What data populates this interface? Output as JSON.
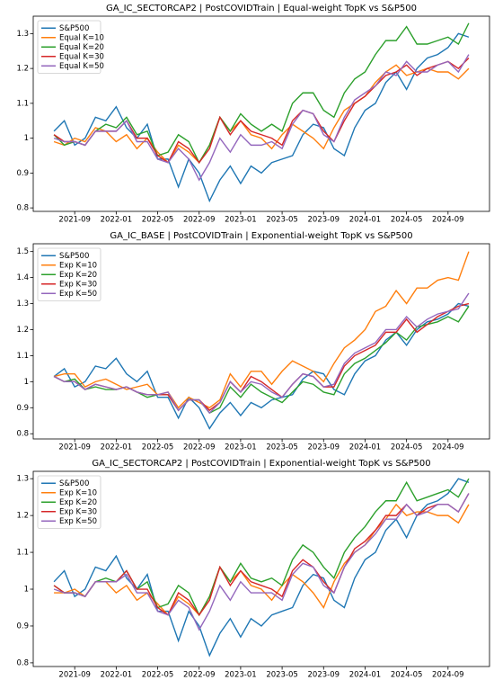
{
  "chart_data": [
    {
      "type": "line",
      "title": "GA_IC_SECTORCAP2 | PostCOVIDTrain | Equal-weight TopK vs S&P500",
      "x": [
        "2021-07",
        "2021-08",
        "2021-09",
        "2021-10",
        "2021-11",
        "2021-12",
        "2022-01",
        "2022-02",
        "2022-03",
        "2022-04",
        "2022-05",
        "2022-06",
        "2022-07",
        "2022-08",
        "2022-09",
        "2022-10",
        "2022-11",
        "2022-12",
        "2023-01",
        "2023-02",
        "2023-03",
        "2023-04",
        "2023-05",
        "2023-06",
        "2023-07",
        "2023-08",
        "2023-09",
        "2023-10",
        "2023-11",
        "2023-12",
        "2024-01",
        "2024-02",
        "2024-03",
        "2024-04",
        "2024-05",
        "2024-06",
        "2024-07",
        "2024-08",
        "2024-09",
        "2024-10",
        "2024-11"
      ],
      "xlim": [
        "2021-05",
        "2025-01"
      ],
      "xticks": [
        "2021-09",
        "2022-01",
        "2022-05",
        "2022-09",
        "2023-01",
        "2023-05",
        "2023-09",
        "2024-01",
        "2024-05",
        "2024-09"
      ],
      "ylim": [
        0.79,
        1.35
      ],
      "yticks": [
        0.8,
        0.9,
        1.0,
        1.1,
        1.2,
        1.3
      ],
      "grid": false,
      "legend": "upper left",
      "series": [
        {
          "name": "S&P500",
          "color": "#1f77b4",
          "values": [
            1.02,
            1.05,
            0.98,
            1.0,
            1.06,
            1.05,
            1.09,
            1.03,
            1.0,
            1.04,
            0.94,
            0.94,
            0.86,
            0.94,
            0.9,
            0.82,
            0.88,
            0.92,
            0.87,
            0.92,
            0.9,
            0.93,
            0.94,
            0.95,
            1.01,
            1.04,
            1.03,
            0.97,
            0.95,
            1.03,
            1.08,
            1.1,
            1.16,
            1.19,
            1.14,
            1.2,
            1.23,
            1.24,
            1.26,
            1.3,
            1.29
          ]
        },
        {
          "name": "Equal K=10",
          "color": "#ff7f0e",
          "values": [
            0.99,
            0.98,
            1.0,
            0.99,
            1.03,
            1.02,
            0.99,
            1.01,
            0.97,
            1.0,
            0.96,
            0.93,
            0.98,
            0.96,
            0.93,
            0.98,
            1.06,
            1.02,
            1.05,
            1.01,
            1.0,
            0.97,
            1.01,
            1.04,
            1.02,
            1.0,
            0.97,
            1.03,
            1.08,
            1.1,
            1.12,
            1.16,
            1.19,
            1.21,
            1.18,
            1.19,
            1.2,
            1.19,
            1.19,
            1.17,
            1.2
          ]
        },
        {
          "name": "Equal K=20",
          "color": "#2ca02c",
          "values": [
            1.01,
            0.98,
            0.99,
            0.98,
            1.02,
            1.04,
            1.03,
            1.06,
            1.01,
            1.02,
            0.95,
            0.96,
            1.01,
            0.99,
            0.93,
            0.98,
            1.06,
            1.02,
            1.07,
            1.04,
            1.02,
            1.04,
            1.02,
            1.1,
            1.13,
            1.13,
            1.08,
            1.06,
            1.13,
            1.17,
            1.19,
            1.24,
            1.28,
            1.28,
            1.32,
            1.27,
            1.27,
            1.28,
            1.29,
            1.27,
            1.33
          ]
        },
        {
          "name": "Equal K=30",
          "color": "#d62728",
          "values": [
            1.01,
            0.99,
            0.99,
            0.98,
            1.02,
            1.02,
            1.02,
            1.05,
            1.0,
            1.0,
            0.95,
            0.93,
            0.99,
            0.97,
            0.93,
            0.97,
            1.06,
            1.01,
            1.05,
            1.02,
            1.01,
            1.0,
            0.98,
            1.05,
            1.08,
            1.07,
            1.02,
            0.99,
            1.05,
            1.1,
            1.12,
            1.15,
            1.18,
            1.19,
            1.21,
            1.18,
            1.2,
            1.21,
            1.22,
            1.2,
            1.23
          ]
        },
        {
          "name": "Equal K=50",
          "color": "#9467bd",
          "values": [
            1.0,
            0.99,
            0.99,
            0.98,
            1.02,
            1.02,
            1.02,
            1.05,
            0.99,
            0.99,
            0.94,
            0.93,
            0.97,
            0.94,
            0.88,
            0.93,
            1.0,
            0.96,
            1.01,
            0.98,
            0.98,
            0.99,
            0.97,
            1.04,
            1.08,
            1.07,
            1.01,
            0.99,
            1.06,
            1.11,
            1.13,
            1.15,
            1.19,
            1.18,
            1.22,
            1.19,
            1.19,
            1.21,
            1.22,
            1.19,
            1.24
          ]
        }
      ]
    },
    {
      "type": "line",
      "title": "GA_IC_BASE | PostCOVIDTrain | Exponential-weight TopK vs S&P500",
      "x": [
        "2021-07",
        "2021-08",
        "2021-09",
        "2021-10",
        "2021-11",
        "2021-12",
        "2022-01",
        "2022-02",
        "2022-03",
        "2022-04",
        "2022-05",
        "2022-06",
        "2022-07",
        "2022-08",
        "2022-09",
        "2022-10",
        "2022-11",
        "2022-12",
        "2023-01",
        "2023-02",
        "2023-03",
        "2023-04",
        "2023-05",
        "2023-06",
        "2023-07",
        "2023-08",
        "2023-09",
        "2023-10",
        "2023-11",
        "2023-12",
        "2024-01",
        "2024-02",
        "2024-03",
        "2024-04",
        "2024-05",
        "2024-06",
        "2024-07",
        "2024-08",
        "2024-09",
        "2024-10",
        "2024-11"
      ],
      "xlim": [
        "2021-05",
        "2025-01"
      ],
      "xticks": [
        "2021-09",
        "2022-01",
        "2022-05",
        "2022-09",
        "2023-01",
        "2023-05",
        "2023-09",
        "2024-01",
        "2024-05",
        "2024-09"
      ],
      "ylim": [
        0.78,
        1.53
      ],
      "yticks": [
        0.8,
        0.9,
        1.0,
        1.1,
        1.2,
        1.3,
        1.4,
        1.5
      ],
      "grid": false,
      "legend": "upper left",
      "series": [
        {
          "name": "S&P500",
          "color": "#1f77b4",
          "values": [
            1.02,
            1.05,
            0.98,
            1.0,
            1.06,
            1.05,
            1.09,
            1.03,
            1.0,
            1.04,
            0.94,
            0.94,
            0.86,
            0.94,
            0.9,
            0.82,
            0.88,
            0.92,
            0.87,
            0.92,
            0.9,
            0.93,
            0.94,
            0.95,
            1.01,
            1.04,
            1.03,
            0.97,
            0.95,
            1.03,
            1.08,
            1.1,
            1.16,
            1.19,
            1.14,
            1.2,
            1.23,
            1.24,
            1.26,
            1.3,
            1.29
          ]
        },
        {
          "name": "Exp K=10",
          "color": "#ff7f0e",
          "values": [
            1.02,
            1.03,
            1.03,
            0.98,
            1.0,
            1.01,
            0.99,
            0.97,
            0.98,
            0.99,
            0.95,
            0.96,
            0.9,
            0.94,
            0.92,
            0.9,
            0.93,
            1.03,
            0.98,
            1.04,
            1.04,
            0.99,
            1.04,
            1.08,
            1.06,
            1.04,
            1.0,
            1.07,
            1.13,
            1.16,
            1.2,
            1.27,
            1.29,
            1.35,
            1.3,
            1.36,
            1.36,
            1.39,
            1.4,
            1.39,
            1.5
          ]
        },
        {
          "name": "Exp K=20",
          "color": "#2ca02c",
          "values": [
            1.02,
            1.0,
            1.01,
            0.97,
            0.98,
            0.97,
            0.97,
            0.98,
            0.96,
            0.94,
            0.95,
            0.95,
            0.89,
            0.93,
            0.93,
            0.88,
            0.9,
            0.98,
            0.94,
            0.99,
            0.96,
            0.94,
            0.92,
            0.96,
            1.0,
            0.99,
            0.96,
            0.95,
            1.03,
            1.07,
            1.09,
            1.12,
            1.15,
            1.19,
            1.16,
            1.21,
            1.22,
            1.23,
            1.25,
            1.23,
            1.29
          ]
        },
        {
          "name": "Exp K=30",
          "color": "#d62728",
          "values": [
            1.02,
            1.0,
            1.0,
            0.97,
            0.99,
            0.98,
            0.97,
            0.98,
            0.96,
            0.95,
            0.95,
            0.95,
            0.89,
            0.93,
            0.93,
            0.89,
            0.92,
            1.0,
            0.96,
            1.02,
            1.0,
            0.97,
            0.94,
            0.99,
            1.03,
            1.02,
            0.98,
            0.98,
            1.06,
            1.1,
            1.12,
            1.14,
            1.19,
            1.19,
            1.24,
            1.19,
            1.22,
            1.25,
            1.27,
            1.29,
            1.3
          ]
        },
        {
          "name": "Exp K=50",
          "color": "#9467bd",
          "values": [
            1.02,
            1.0,
            1.0,
            0.97,
            0.99,
            0.98,
            0.97,
            0.98,
            0.96,
            0.95,
            0.95,
            0.96,
            0.89,
            0.93,
            0.93,
            0.88,
            0.92,
            1.0,
            0.96,
            1.0,
            0.99,
            0.96,
            0.94,
            0.99,
            1.03,
            1.02,
            0.98,
            0.99,
            1.07,
            1.11,
            1.13,
            1.15,
            1.2,
            1.2,
            1.25,
            1.21,
            1.24,
            1.26,
            1.27,
            1.28,
            1.34
          ]
        }
      ]
    },
    {
      "type": "line",
      "title": "GA_IC_SECTORCAP2 | PostCOVIDTrain | Exponential-weight TopK vs S&P500",
      "x": [
        "2021-07",
        "2021-08",
        "2021-09",
        "2021-10",
        "2021-11",
        "2021-12",
        "2022-01",
        "2022-02",
        "2022-03",
        "2022-04",
        "2022-05",
        "2022-06",
        "2022-07",
        "2022-08",
        "2022-09",
        "2022-10",
        "2022-11",
        "2022-12",
        "2023-01",
        "2023-02",
        "2023-03",
        "2023-04",
        "2023-05",
        "2023-06",
        "2023-07",
        "2023-08",
        "2023-09",
        "2023-10",
        "2023-11",
        "2023-12",
        "2024-01",
        "2024-02",
        "2024-03",
        "2024-04",
        "2024-05",
        "2024-06",
        "2024-07",
        "2024-08",
        "2024-09",
        "2024-10",
        "2024-11"
      ],
      "xlim": [
        "2021-05",
        "2025-01"
      ],
      "xticks": [
        "2021-09",
        "2022-01",
        "2022-05",
        "2022-09",
        "2023-01",
        "2023-05",
        "2023-09",
        "2024-01",
        "2024-05",
        "2024-09"
      ],
      "ylim": [
        0.79,
        1.32
      ],
      "yticks": [
        0.8,
        0.9,
        1.0,
        1.1,
        1.2,
        1.3
      ],
      "grid": false,
      "legend": "upper left",
      "series": [
        {
          "name": "S&P500",
          "color": "#1f77b4",
          "values": [
            1.02,
            1.05,
            0.98,
            1.0,
            1.06,
            1.05,
            1.09,
            1.03,
            1.0,
            1.04,
            0.94,
            0.94,
            0.86,
            0.94,
            0.9,
            0.82,
            0.88,
            0.92,
            0.87,
            0.92,
            0.9,
            0.93,
            0.94,
            0.95,
            1.01,
            1.04,
            1.03,
            0.97,
            0.95,
            1.03,
            1.08,
            1.1,
            1.16,
            1.19,
            1.14,
            1.2,
            1.23,
            1.24,
            1.26,
            1.3,
            1.29
          ]
        },
        {
          "name": "Exp K=10",
          "color": "#ff7f0e",
          "values": [
            0.99,
            0.99,
            1.0,
            0.98,
            1.02,
            1.02,
            0.99,
            1.01,
            0.97,
            0.99,
            0.96,
            0.93,
            0.98,
            0.96,
            0.93,
            0.98,
            1.06,
            1.02,
            1.05,
            1.01,
            1.0,
            0.97,
            1.01,
            1.04,
            1.02,
            0.99,
            0.95,
            1.02,
            1.07,
            1.1,
            1.12,
            1.16,
            1.19,
            1.23,
            1.2,
            1.21,
            1.21,
            1.2,
            1.2,
            1.18,
            1.23
          ]
        },
        {
          "name": "Exp K=20",
          "color": "#2ca02c",
          "values": [
            1.01,
            0.99,
            0.99,
            0.98,
            1.02,
            1.03,
            1.02,
            1.05,
            1.0,
            1.02,
            0.95,
            0.96,
            1.01,
            0.99,
            0.93,
            0.98,
            1.06,
            1.02,
            1.07,
            1.03,
            1.02,
            1.03,
            1.01,
            1.08,
            1.12,
            1.1,
            1.06,
            1.03,
            1.1,
            1.14,
            1.17,
            1.21,
            1.24,
            1.24,
            1.29,
            1.24,
            1.25,
            1.26,
            1.27,
            1.25,
            1.3
          ]
        },
        {
          "name": "Exp K=30",
          "color": "#d62728",
          "values": [
            1.01,
            0.99,
            0.99,
            0.98,
            1.02,
            1.02,
            1.02,
            1.05,
            1.0,
            1.0,
            0.95,
            0.93,
            0.99,
            0.97,
            0.93,
            0.97,
            1.06,
            1.01,
            1.05,
            1.02,
            1.01,
            1.0,
            0.98,
            1.05,
            1.08,
            1.06,
            1.02,
            0.99,
            1.06,
            1.11,
            1.13,
            1.16,
            1.2,
            1.2,
            1.23,
            1.2,
            1.22,
            1.23,
            1.23,
            1.21,
            1.26
          ]
        },
        {
          "name": "Exp K=50",
          "color": "#9467bd",
          "values": [
            1.0,
            0.99,
            0.99,
            0.98,
            1.02,
            1.02,
            1.02,
            1.04,
            0.99,
            0.99,
            0.94,
            0.93,
            0.97,
            0.95,
            0.89,
            0.94,
            1.01,
            0.97,
            1.02,
            0.99,
            0.99,
            0.99,
            0.97,
            1.04,
            1.07,
            1.06,
            1.01,
            0.99,
            1.06,
            1.1,
            1.12,
            1.15,
            1.19,
            1.19,
            1.23,
            1.2,
            1.21,
            1.23,
            1.23,
            1.21,
            1.26
          ]
        }
      ]
    }
  ]
}
